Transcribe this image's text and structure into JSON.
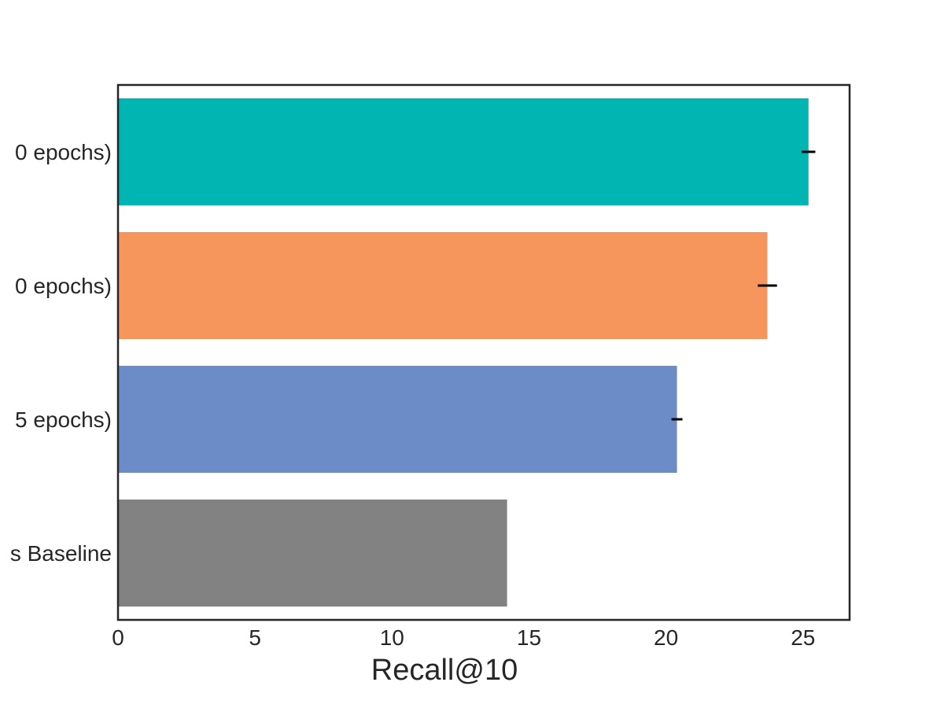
{
  "chart_data": {
    "type": "bar",
    "orientation": "horizontal",
    "title": "",
    "xlabel": "Recall@10",
    "ylabel": "",
    "xlim": [
      0,
      26.7
    ],
    "xticks": [
      0,
      5,
      10,
      15,
      20,
      25
    ],
    "grid": false,
    "categories": [
      "0 epochs)",
      "0 epochs)",
      "5 epochs)",
      "s Baseline"
    ],
    "values": [
      25.2,
      23.7,
      20.4,
      14.2
    ],
    "errors": [
      0.25,
      0.35,
      0.2,
      null
    ],
    "colors": [
      "#00b5b2",
      "#f7965c",
      "#6b8cc6",
      "#828282"
    ]
  }
}
